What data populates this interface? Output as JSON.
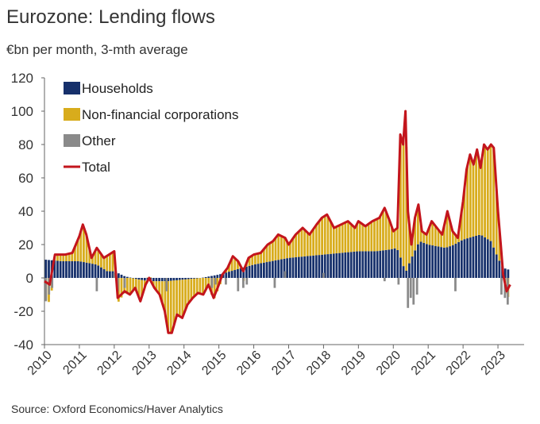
{
  "chart_data": {
    "type": "bar",
    "stacked": true,
    "title": "Eurozone: Lending flows",
    "subtitle": "€bn per month, 3-mth average",
    "source": "Source: Oxford Economics/Haver Analytics",
    "ylim": [
      -40,
      120
    ],
    "yticks": [
      -40,
      -20,
      0,
      20,
      40,
      60,
      80,
      100,
      120
    ],
    "xlim": [
      2010,
      2023.75
    ],
    "xticks": [
      "2010",
      "2011",
      "2012",
      "2013",
      "2014",
      "2015",
      "2016",
      "2017",
      "2018",
      "2019",
      "2020",
      "2021",
      "2022",
      "2023"
    ],
    "legend_position": "top-left",
    "colors": {
      "households": "#16306b",
      "nfc": "#d8ac1c",
      "other": "#8a8a8a",
      "total": "#c3151c"
    },
    "legend": [
      {
        "key": "households",
        "label": "Households",
        "kind": "bar"
      },
      {
        "key": "nfc",
        "label": "Non-financial corporations",
        "kind": "bar"
      },
      {
        "key": "other",
        "label": "Other",
        "kind": "bar"
      },
      {
        "key": "total",
        "label": "Total",
        "kind": "line"
      }
    ],
    "households_points": [
      [
        2010.0,
        11
      ],
      [
        2010.5,
        10
      ],
      [
        2011.0,
        10
      ],
      [
        2011.5,
        8
      ],
      [
        2011.8,
        4
      ],
      [
        2012.0,
        4
      ],
      [
        2012.3,
        1
      ],
      [
        2012.7,
        -1
      ],
      [
        2013.0,
        -2
      ],
      [
        2013.5,
        -2
      ],
      [
        2014.0,
        -1
      ],
      [
        2014.5,
        0
      ],
      [
        2015.0,
        2
      ],
      [
        2015.5,
        5
      ],
      [
        2016.0,
        8
      ],
      [
        2016.5,
        10
      ],
      [
        2017.0,
        12
      ],
      [
        2017.5,
        13
      ],
      [
        2018.0,
        14
      ],
      [
        2018.5,
        15
      ],
      [
        2019.0,
        16
      ],
      [
        2019.5,
        16
      ],
      [
        2019.9,
        17
      ],
      [
        2020.1,
        18
      ],
      [
        2020.25,
        10
      ],
      [
        2020.35,
        3
      ],
      [
        2020.5,
        11
      ],
      [
        2020.75,
        22
      ],
      [
        2021.0,
        20
      ],
      [
        2021.5,
        18
      ],
      [
        2021.75,
        20
      ],
      [
        2022.0,
        23
      ],
      [
        2022.5,
        26
      ],
      [
        2022.8,
        22
      ],
      [
        2023.0,
        12
      ],
      [
        2023.15,
        6
      ],
      [
        2023.3,
        5
      ]
    ],
    "total_points": [
      [
        2010.0,
        -2
      ],
      [
        2010.15,
        -4
      ],
      [
        2010.3,
        14
      ],
      [
        2010.6,
        14
      ],
      [
        2010.8,
        15
      ],
      [
        2010.9,
        20
      ],
      [
        2011.0,
        25
      ],
      [
        2011.1,
        32
      ],
      [
        2011.2,
        26
      ],
      [
        2011.35,
        12
      ],
      [
        2011.5,
        18
      ],
      [
        2011.7,
        12
      ],
      [
        2011.85,
        14
      ],
      [
        2012.0,
        16
      ],
      [
        2012.1,
        -12
      ],
      [
        2012.3,
        -8
      ],
      [
        2012.45,
        -10
      ],
      [
        2012.6,
        -6
      ],
      [
        2012.75,
        -14
      ],
      [
        2012.9,
        -4
      ],
      [
        2013.0,
        0
      ],
      [
        2013.15,
        -6
      ],
      [
        2013.3,
        -10
      ],
      [
        2013.45,
        -20
      ],
      [
        2013.55,
        -33
      ],
      [
        2013.65,
        -33
      ],
      [
        2013.8,
        -22
      ],
      [
        2013.95,
        -24
      ],
      [
        2014.1,
        -16
      ],
      [
        2014.25,
        -12
      ],
      [
        2014.4,
        -9
      ],
      [
        2014.55,
        -10
      ],
      [
        2014.7,
        -4
      ],
      [
        2014.85,
        -12
      ],
      [
        2015.0,
        -4
      ],
      [
        2015.1,
        2
      ],
      [
        2015.25,
        6
      ],
      [
        2015.4,
        13
      ],
      [
        2015.55,
        10
      ],
      [
        2015.7,
        4
      ],
      [
        2015.85,
        12
      ],
      [
        2016.0,
        14
      ],
      [
        2016.2,
        15
      ],
      [
        2016.4,
        20
      ],
      [
        2016.55,
        22
      ],
      [
        2016.7,
        26
      ],
      [
        2016.9,
        24
      ],
      [
        2017.0,
        20
      ],
      [
        2017.2,
        26
      ],
      [
        2017.4,
        30
      ],
      [
        2017.6,
        26
      ],
      [
        2017.8,
        32
      ],
      [
        2017.95,
        36
      ],
      [
        2018.1,
        38
      ],
      [
        2018.3,
        30
      ],
      [
        2018.5,
        32
      ],
      [
        2018.7,
        34
      ],
      [
        2018.9,
        30
      ],
      [
        2019.0,
        34
      ],
      [
        2019.2,
        31
      ],
      [
        2019.4,
        34
      ],
      [
        2019.6,
        36
      ],
      [
        2019.75,
        42
      ],
      [
        2019.9,
        34
      ],
      [
        2020.0,
        28
      ],
      [
        2020.12,
        30
      ],
      [
        2020.2,
        86
      ],
      [
        2020.28,
        80
      ],
      [
        2020.35,
        100
      ],
      [
        2020.42,
        40
      ],
      [
        2020.52,
        20
      ],
      [
        2020.62,
        36
      ],
      [
        2020.72,
        44
      ],
      [
        2020.82,
        28
      ],
      [
        2020.95,
        26
      ],
      [
        2021.1,
        34
      ],
      [
        2021.25,
        30
      ],
      [
        2021.4,
        26
      ],
      [
        2021.55,
        40
      ],
      [
        2021.7,
        28
      ],
      [
        2021.85,
        24
      ],
      [
        2022.0,
        46
      ],
      [
        2022.1,
        65
      ],
      [
        2022.2,
        74
      ],
      [
        2022.3,
        68
      ],
      [
        2022.4,
        77
      ],
      [
        2022.5,
        66
      ],
      [
        2022.6,
        80
      ],
      [
        2022.7,
        77
      ],
      [
        2022.8,
        80
      ],
      [
        2022.88,
        78
      ],
      [
        2023.0,
        40
      ],
      [
        2023.08,
        20
      ],
      [
        2023.15,
        2
      ],
      [
        2023.25,
        -8
      ],
      [
        2023.35,
        -4
      ]
    ],
    "other_bars": [
      [
        2010.04,
        -14
      ],
      [
        2010.13,
        -10
      ],
      [
        2010.22,
        -6
      ],
      [
        2011.5,
        -8
      ],
      [
        2012.0,
        3
      ],
      [
        2012.1,
        -8
      ],
      [
        2012.3,
        -6
      ],
      [
        2013.5,
        -8
      ],
      [
        2014.8,
        -6
      ],
      [
        2014.9,
        -4
      ],
      [
        2015.2,
        -4
      ],
      [
        2015.55,
        -8
      ],
      [
        2015.7,
        -6
      ],
      [
        2015.8,
        -4
      ],
      [
        2016.6,
        -6
      ],
      [
        2016.9,
        4
      ],
      [
        2018.0,
        3
      ],
      [
        2019.75,
        -2
      ],
      [
        2020.15,
        -4
      ],
      [
        2020.42,
        -18
      ],
      [
        2020.5,
        -12
      ],
      [
        2020.58,
        -16
      ],
      [
        2020.68,
        -10
      ],
      [
        2021.78,
        -8
      ],
      [
        2023.1,
        -10
      ],
      [
        2023.2,
        -12
      ],
      [
        2023.28,
        -16
      ]
    ]
  }
}
